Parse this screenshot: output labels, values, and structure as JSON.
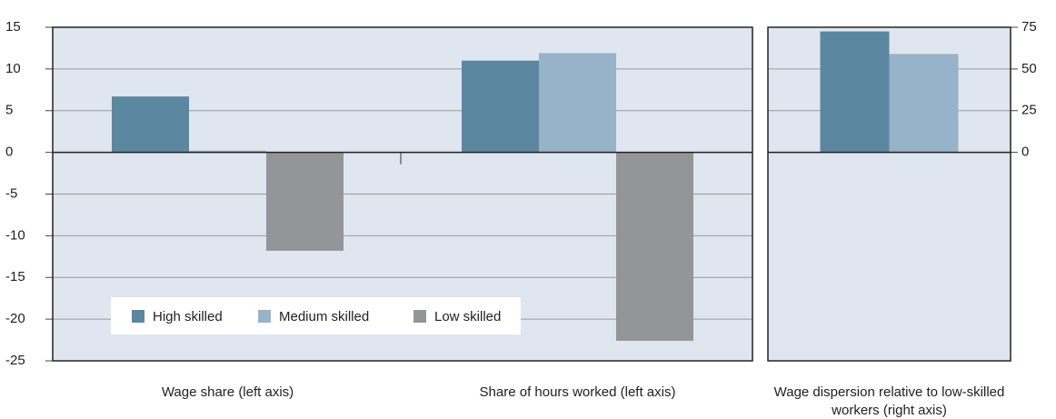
{
  "chart_data": [
    {
      "type": "bar",
      "categories": [
        "Wage share (left axis)",
        "Share of hours worked (left axis)"
      ],
      "series": [
        {
          "name": "High skilled",
          "color": "#5b87a1",
          "values": [
            6.7,
            11.0
          ]
        },
        {
          "name": "Medium skilled",
          "color": "#97b3c9",
          "values": [
            0.2,
            11.9
          ]
        },
        {
          "name": "Low skilled",
          "color": "#939598",
          "values": [
            -11.8,
            -22.6
          ]
        }
      ],
      "ylim": [
        -25,
        15
      ],
      "yticks": [
        -25,
        -20,
        -15,
        -10,
        -5,
        0,
        5,
        10,
        15
      ],
      "grid": true,
      "legend": "lower-left"
    },
    {
      "type": "bar",
      "categories": [
        "Wage dispersion relative to low-skilled workers (right axis)"
      ],
      "series": [
        {
          "color": "#5b87a1",
          "values": [
            72.5
          ]
        },
        {
          "color": "#97b3c9",
          "values": [
            59
          ]
        }
      ],
      "ylim": [
        -125,
        75
      ],
      "yticks": [
        0,
        25,
        50,
        75
      ],
      "grid": true,
      "axis": "right"
    }
  ]
}
